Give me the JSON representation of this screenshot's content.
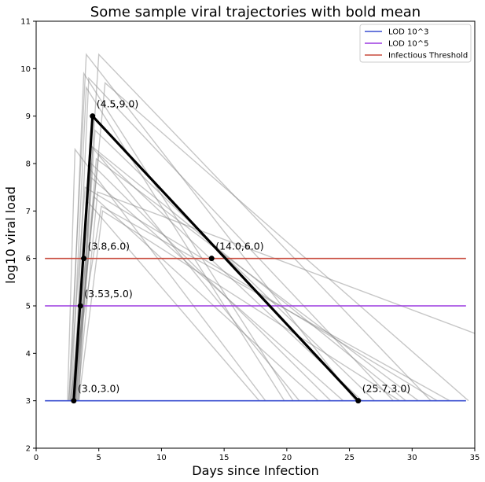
{
  "chart_data": {
    "type": "line",
    "title": "Some sample viral trajectories with bold mean",
    "xlabel": "Days since Infection",
    "ylabel": "log10 viral load",
    "xlim": [
      0,
      35
    ],
    "ylim": [
      2,
      11
    ],
    "xticks": [
      0,
      5,
      10,
      15,
      20,
      25,
      30,
      35
    ],
    "yticks": [
      2,
      3,
      4,
      5,
      6,
      7,
      8,
      9,
      10,
      11
    ],
    "grid": false,
    "legend_position": "top-right",
    "thresholds": [
      {
        "name": "LOD 10^3",
        "y": 3,
        "x_range": [
          0.7,
          34.3
        ],
        "color": "#3a4fd0"
      },
      {
        "name": "LOD 10^5",
        "y": 5,
        "x_range": [
          0.7,
          34.3
        ],
        "color": "#9b3ae0"
      },
      {
        "name": "Infectious Threshold",
        "y": 6,
        "x_range": [
          0.7,
          34.3
        ],
        "color": "#c84a3c"
      }
    ],
    "mean_trajectory": {
      "color": "#000000",
      "points": [
        {
          "x": 3.0,
          "y": 3.0,
          "label": "(3.0,3.0)"
        },
        {
          "x": 3.53,
          "y": 5.0,
          "label": "(3.53,5.0)"
        },
        {
          "x": 3.8,
          "y": 6.0,
          "label": "(3.8,6.0)"
        },
        {
          "x": 4.5,
          "y": 9.0,
          "label": "(4.5,9.0)"
        },
        {
          "x": 14.0,
          "y": 6.0,
          "label": "(14.0,6.0)"
        },
        {
          "x": 25.7,
          "y": 3.0,
          "label": "(25.7,3.0)"
        }
      ],
      "path": [
        [
          3.0,
          3.0
        ],
        [
          4.5,
          9.0
        ],
        [
          25.7,
          3.0
        ]
      ]
    },
    "sample_trajectories": [
      [
        [
          2.6,
          3.0
        ],
        [
          4.0,
          10.3
        ],
        [
          25.5,
          3.0
        ]
      ],
      [
        [
          3.2,
          3.0
        ],
        [
          5.0,
          10.3
        ],
        [
          31.5,
          3.0
        ]
      ],
      [
        [
          2.7,
          3.0
        ],
        [
          3.8,
          9.9
        ],
        [
          20.5,
          3.0
        ]
      ],
      [
        [
          3.0,
          3.0
        ],
        [
          4.2,
          9.8
        ],
        [
          28.5,
          3.0
        ]
      ],
      [
        [
          3.1,
          3.0
        ],
        [
          5.5,
          9.7
        ],
        [
          34.5,
          3.0
        ]
      ],
      [
        [
          2.8,
          3.0
        ],
        [
          4.0,
          9.6
        ],
        [
          19.8,
          3.0
        ]
      ],
      [
        [
          3.3,
          3.0
        ],
        [
          4.7,
          8.7
        ],
        [
          27.0,
          3.0
        ]
      ],
      [
        [
          2.9,
          3.0
        ],
        [
          4.3,
          8.4
        ],
        [
          21.0,
          3.0
        ]
      ],
      [
        [
          2.5,
          3.0
        ],
        [
          3.1,
          8.3
        ],
        [
          18.3,
          3.0
        ]
      ],
      [
        [
          3.4,
          3.0
        ],
        [
          4.5,
          8.35
        ],
        [
          29.5,
          3.0
        ]
      ],
      [
        [
          3.0,
          3.0
        ],
        [
          5.0,
          8.2
        ],
        [
          26.0,
          3.0
        ]
      ],
      [
        [
          2.8,
          3.0
        ],
        [
          4.4,
          8.0
        ],
        [
          23.5,
          3.0
        ]
      ],
      [
        [
          3.2,
          3.0
        ],
        [
          4.8,
          8.1
        ],
        [
          30.5,
          3.0
        ]
      ],
      [
        [
          2.6,
          3.0
        ],
        [
          3.9,
          7.5
        ],
        [
          32.0,
          3.0
        ]
      ],
      [
        [
          3.3,
          3.0
        ],
        [
          4.9,
          7.4
        ],
        [
          35.0,
          4.42
        ]
      ],
      [
        [
          3.0,
          3.0
        ],
        [
          4.6,
          7.3
        ],
        [
          22.5,
          3.0
        ]
      ],
      [
        [
          2.7,
          3.0
        ],
        [
          5.2,
          7.1
        ],
        [
          33.0,
          3.0
        ]
      ],
      [
        [
          3.1,
          3.0
        ],
        [
          4.4,
          7.7
        ],
        [
          24.5,
          3.0
        ]
      ],
      [
        [
          2.9,
          3.0
        ],
        [
          4.1,
          7.2
        ],
        [
          17.8,
          3.0
        ]
      ],
      [
        [
          3.4,
          3.0
        ],
        [
          5.3,
          7.0
        ],
        [
          29.0,
          3.0
        ]
      ]
    ]
  }
}
